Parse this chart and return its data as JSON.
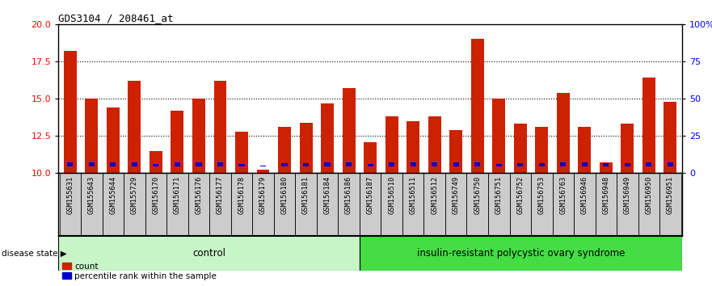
{
  "title": "GDS3104 / 208461_at",
  "samples": [
    "GSM155631",
    "GSM155643",
    "GSM155644",
    "GSM155729",
    "GSM156170",
    "GSM156171",
    "GSM156176",
    "GSM156177",
    "GSM156178",
    "GSM156179",
    "GSM156180",
    "GSM156181",
    "GSM156184",
    "GSM156186",
    "GSM156187",
    "GSM156510",
    "GSM156511",
    "GSM156512",
    "GSM156749",
    "GSM156750",
    "GSM156751",
    "GSM156752",
    "GSM156753",
    "GSM156763",
    "GSM156946",
    "GSM156948",
    "GSM156949",
    "GSM156950",
    "GSM156951"
  ],
  "red_values": [
    18.2,
    15.0,
    14.4,
    16.2,
    11.5,
    14.2,
    15.0,
    16.2,
    12.8,
    10.2,
    13.1,
    13.4,
    14.7,
    15.7,
    12.1,
    13.8,
    13.5,
    13.8,
    12.9,
    19.0,
    15.0,
    13.3,
    13.1,
    15.4,
    13.1,
    10.7,
    13.3,
    16.4,
    14.8
  ],
  "blue_values": [
    0.5,
    0.5,
    0.5,
    0.5,
    0.3,
    0.5,
    0.5,
    0.5,
    0.3,
    0.08,
    0.4,
    0.4,
    0.5,
    0.5,
    0.3,
    0.5,
    0.5,
    0.5,
    0.5,
    0.5,
    0.3,
    0.4,
    0.4,
    0.5,
    0.5,
    0.4,
    0.4,
    0.5,
    0.5
  ],
  "group_labels": [
    "control",
    "insulin-resistant polycystic ovary syndrome"
  ],
  "group_sizes": [
    14,
    15
  ],
  "light_green": "#C8F5C8",
  "dark_green": "#44DD44",
  "bar_red": "#CC2200",
  "bar_blue": "#0000CC",
  "bg_gray": "#CCCCCC",
  "ylim_left": [
    10,
    20
  ],
  "yticks_left": [
    10,
    12.5,
    15,
    17.5,
    20
  ],
  "yticks_right": [
    0,
    25,
    50,
    75,
    100
  ],
  "ytick_labels_right": [
    "0",
    "25",
    "50",
    "75",
    "100%"
  ],
  "hlines": [
    12.5,
    15.0,
    17.5
  ],
  "disease_state_label": "disease state"
}
